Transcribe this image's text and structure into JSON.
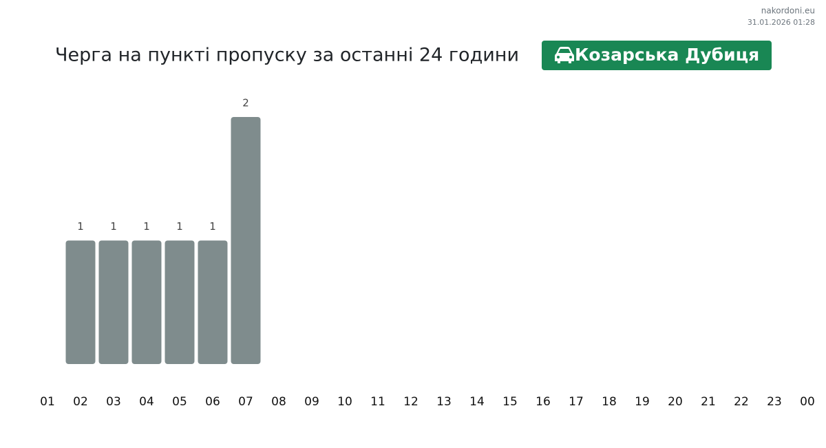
{
  "chart_data": {
    "type": "bar",
    "title": "Черга на пункті пропуску за останні 24 години",
    "location": "Козарська Дубиця",
    "source": "nakordoni.eu",
    "timestamp": "31.01.2026 01:28",
    "categories": [
      "01",
      "02",
      "03",
      "04",
      "05",
      "06",
      "07",
      "08",
      "09",
      "10",
      "11",
      "12",
      "13",
      "14",
      "15",
      "16",
      "17",
      "18",
      "19",
      "20",
      "21",
      "22",
      "23",
      "00"
    ],
    "values": [
      null,
      1,
      1,
      1,
      1,
      1,
      2,
      null,
      null,
      null,
      null,
      null,
      null,
      null,
      null,
      null,
      null,
      null,
      null,
      null,
      null,
      null,
      null,
      null
    ],
    "color": "#7f8c8d"
  }
}
